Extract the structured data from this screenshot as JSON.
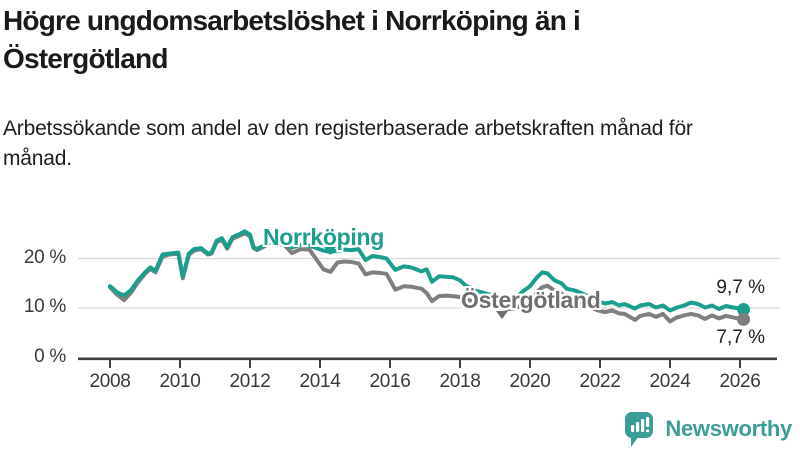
{
  "header": {
    "title": "Högre ungdomsarbetslöshet i Norrköping än i Östergötland",
    "subtitle": "Arbetssökande som andel av den registerbaserade arbetskraften månad för månad."
  },
  "chart_data": {
    "type": "line",
    "title": "Högre ungdomsarbetslöshet i Norrköping än i Östergötland",
    "subtitle": "Arbetssökande som andel av den registerbaserade arbetskraften månad för månad.",
    "xlabel": "",
    "ylabel": "",
    "grid": "horizontal",
    "legend_position": "inline-annotations",
    "xlim": [
      2007.1,
      2027.1
    ],
    "ylim": [
      0,
      27
    ],
    "x_ticks": [
      2008,
      2010,
      2012,
      2014,
      2016,
      2018,
      2020,
      2022,
      2024,
      2026
    ],
    "y_ticks": [
      {
        "value": 0,
        "label": "0 %"
      },
      {
        "value": 10,
        "label": "10 %"
      },
      {
        "value": 20,
        "label": "20 %"
      }
    ],
    "x": [
      2008.0,
      2008.2,
      2008.4,
      2008.6,
      2008.8,
      2009.0,
      2009.15,
      2009.3,
      2009.5,
      2009.7,
      2009.95,
      2010.08,
      2010.25,
      2010.4,
      2010.6,
      2010.8,
      2010.9,
      2011.05,
      2011.2,
      2011.35,
      2011.5,
      2011.7,
      2011.85,
      2012.0,
      2012.1,
      2012.2,
      2012.4,
      2012.6,
      2012.8,
      2013.0,
      2013.2,
      2013.45,
      2013.7,
      2013.9,
      2014.1,
      2014.3,
      2014.5,
      2014.7,
      2014.9,
      2015.1,
      2015.3,
      2015.5,
      2015.7,
      2015.9,
      2016.15,
      2016.4,
      2016.6,
      2016.9,
      2017.05,
      2017.2,
      2017.4,
      2017.6,
      2017.8,
      2018.0,
      2018.15,
      2018.4,
      2018.6,
      2018.8,
      2019.0,
      2019.2,
      2019.4,
      2019.6,
      2019.8,
      2020.0,
      2020.2,
      2020.35,
      2020.5,
      2020.7,
      2020.9,
      2021.05,
      2021.3,
      2021.5,
      2021.7,
      2021.9,
      2022.0,
      2022.15,
      2022.35,
      2022.55,
      2022.7,
      2023.0,
      2023.15,
      2023.4,
      2023.6,
      2023.8,
      2024.0,
      2024.2,
      2024.4,
      2024.6,
      2024.8,
      2025.0,
      2025.2,
      2025.4,
      2025.6,
      2025.8,
      2026.0,
      2026.1
    ],
    "series": [
      {
        "name": "Norrköping",
        "color": "#1C9E8F",
        "end_label": "9,7 %",
        "end_value": 9.7,
        "values": [
          14.4,
          13.2,
          12.5,
          13.6,
          15.6,
          17.2,
          18.2,
          17.5,
          20.8,
          21.0,
          21.2,
          16.3,
          21.0,
          21.9,
          22.1,
          21.0,
          21.2,
          23.6,
          24.1,
          22.3,
          24.3,
          24.9,
          25.5,
          24.8,
          22.3,
          21.9,
          22.6,
          23.7,
          23.4,
          23.2,
          22.2,
          22.8,
          22.6,
          22.1,
          21.6,
          21.3,
          21.6,
          21.8,
          21.7,
          21.9,
          19.7,
          20.5,
          20.3,
          20.0,
          17.7,
          18.4,
          18.2,
          17.4,
          17.8,
          15.3,
          16.4,
          16.3,
          16.2,
          15.6,
          14.6,
          13.6,
          13.2,
          12.8,
          12.4,
          11.8,
          11.6,
          12.0,
          13.4,
          14.4,
          16.2,
          17.2,
          17.0,
          15.6,
          15.0,
          13.9,
          13.5,
          12.9,
          12.2,
          11.5,
          11.2,
          10.9,
          11.2,
          10.5,
          10.8,
          9.9,
          10.5,
          10.8,
          10.1,
          10.5,
          9.5,
          10.1,
          10.5,
          11.1,
          10.8,
          10.1,
          10.5,
          9.8,
          10.4,
          10.1,
          9.9,
          9.7
        ]
      },
      {
        "name": "Östergötland",
        "color": "#7F7F7F",
        "end_label": "7,7 %",
        "end_value": 7.7,
        "values": [
          14.2,
          12.7,
          11.6,
          13.1,
          15.2,
          16.9,
          17.9,
          17.2,
          20.4,
          20.8,
          21.0,
          16.0,
          20.7,
          21.6,
          21.9,
          20.8,
          21.0,
          23.3,
          23.8,
          22.0,
          24.0,
          24.6,
          25.1,
          24.5,
          22.1,
          21.7,
          22.4,
          23.3,
          22.9,
          22.6,
          21.1,
          21.9,
          21.8,
          19.8,
          17.8,
          17.3,
          19.2,
          19.4,
          19.3,
          19.0,
          16.8,
          17.2,
          17.1,
          16.9,
          13.7,
          14.4,
          14.3,
          13.9,
          13.0,
          11.4,
          12.4,
          12.5,
          12.4,
          12.2,
          11.9,
          11.2,
          10.8,
          10.4,
          10.2,
          10.0,
          9.8,
          10.0,
          10.6,
          11.4,
          13.2,
          14.2,
          14.5,
          13.5,
          12.9,
          12.2,
          11.6,
          11.0,
          10.3,
          9.6,
          9.4,
          9.2,
          9.5,
          8.9,
          8.8,
          7.6,
          8.4,
          8.8,
          8.2,
          8.8,
          7.3,
          8.1,
          8.5,
          8.8,
          8.5,
          7.8,
          8.5,
          7.9,
          8.4,
          8.1,
          7.8,
          7.7
        ]
      }
    ],
    "colors": {
      "gridline": "#D9D9D9",
      "axis": "#404040",
      "tick_text": "#3a3a3a"
    }
  },
  "footer": {
    "brand": "Newsworthy",
    "logo_icon": "bar-chart-speech-bubble-icon",
    "brand_color": "#3C9D96"
  }
}
